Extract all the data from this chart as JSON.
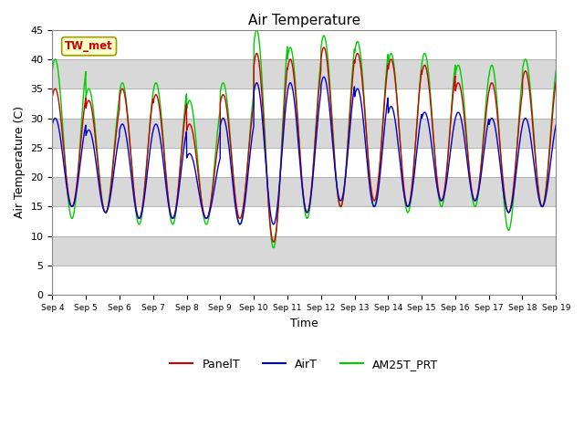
{
  "title": "Air Temperature",
  "xlabel": "Time",
  "ylabel": "Air Temperature (C)",
  "ylim": [
    0,
    45
  ],
  "yticks": [
    0,
    5,
    10,
    15,
    20,
    25,
    30,
    35,
    40,
    45
  ],
  "background_color": "#ffffff",
  "plot_bg_color": "#d8d8d8",
  "band_colors": [
    "#ffffff",
    "#d8d8d8"
  ],
  "legend_items": [
    "PanelT",
    "AirT",
    "AM25T_PRT"
  ],
  "legend_colors": [
    "#cc0000",
    "#0000cc",
    "#00cc00"
  ],
  "station_label": "TW_met",
  "station_label_color": "#cc0000",
  "station_box_facecolor": "#ffffcc",
  "station_box_edgecolor": "#999900",
  "x_tick_labels": [
    "Sep 4",
    "Sep 5",
    "Sep 6",
    "Sep 7",
    "Sep 8",
    "Sep 9",
    "Sep 10",
    "Sep 11",
    "Sep 12",
    "Sep 13",
    "Sep 14",
    "Sep 15",
    "Sep 16",
    "Sep 17",
    "Sep 18",
    "Sep 19"
  ],
  "days": 15,
  "points_per_day": 144,
  "panel_peaks": [
    35,
    33,
    35,
    34,
    29,
    34,
    41,
    40,
    42,
    41,
    40,
    39,
    36,
    36,
    38
  ],
  "air_peaks": [
    30,
    28,
    29,
    29,
    24,
    30,
    36,
    36,
    37,
    35,
    32,
    31,
    31,
    30,
    30
  ],
  "am25t_peaks": [
    40,
    35,
    36,
    36,
    33,
    36,
    45,
    42,
    44,
    43,
    41,
    41,
    39,
    39,
    40
  ],
  "min_temps_panel": [
    15,
    14,
    13,
    13,
    13,
    13,
    9,
    14,
    15,
    16,
    15,
    16,
    16,
    14,
    15
  ],
  "min_temps_air": [
    15,
    14,
    13,
    13,
    13,
    12,
    12,
    14,
    16,
    15,
    15,
    16,
    16,
    14,
    15
  ],
  "min_temps_am25t": [
    13,
    14,
    12,
    12,
    12,
    12,
    8,
    13,
    15,
    15,
    14,
    15,
    15,
    11,
    15
  ],
  "title_fontsize": 11,
  "axis_label_fontsize": 9,
  "tick_fontsize": 8,
  "legend_fontsize": 9
}
